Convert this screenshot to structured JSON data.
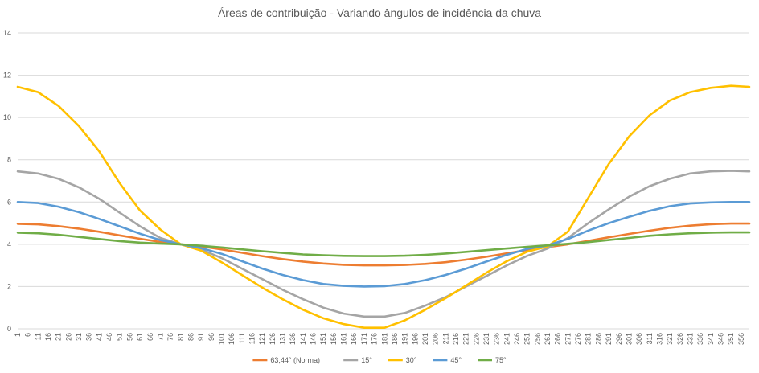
{
  "chart_data": {
    "type": "line",
    "title": "Áreas de contribuição - Variando ângulos de incidência da chuva",
    "xlabel": "",
    "ylabel": "",
    "ylim": [
      0,
      14
    ],
    "yticks": [
      0,
      2,
      4,
      6,
      8,
      10,
      12,
      14
    ],
    "xlim": [
      1,
      360
    ],
    "xtick_start": 1,
    "xtick_step": 5,
    "grid": true,
    "legend_position": "bottom",
    "x": [
      1,
      11,
      21,
      31,
      41,
      51,
      61,
      71,
      81,
      91,
      101,
      111,
      121,
      131,
      141,
      151,
      161,
      171,
      181,
      191,
      201,
      211,
      221,
      231,
      241,
      251,
      261,
      271,
      281,
      291,
      301,
      311,
      321,
      331,
      341,
      351,
      360
    ],
    "series": [
      {
        "name": "63,44° (Norma)",
        "color": "#ED7D31",
        "values": [
          4.97,
          4.94,
          4.86,
          4.74,
          4.59,
          4.42,
          4.26,
          4.11,
          4.0,
          3.9,
          3.76,
          3.6,
          3.44,
          3.3,
          3.18,
          3.09,
          3.03,
          3.0,
          3.0,
          3.02,
          3.07,
          3.15,
          3.27,
          3.41,
          3.57,
          3.73,
          3.87,
          4.0,
          4.16,
          4.33,
          4.49,
          4.64,
          4.78,
          4.88,
          4.95,
          4.98,
          4.98
        ]
      },
      {
        "name": "15°",
        "color": "#A5A5A5",
        "values": [
          7.45,
          7.35,
          7.1,
          6.7,
          6.15,
          5.5,
          4.85,
          4.3,
          4.0,
          3.75,
          3.35,
          2.85,
          2.35,
          1.85,
          1.4,
          1.0,
          0.72,
          0.58,
          0.58,
          0.75,
          1.1,
          1.5,
          2.0,
          2.5,
          3.0,
          3.45,
          3.8,
          4.3,
          5.0,
          5.65,
          6.25,
          6.75,
          7.1,
          7.35,
          7.45,
          7.48,
          7.45
        ]
      },
      {
        "name": "30°",
        "color": "#FFC000",
        "values": [
          11.45,
          11.2,
          10.55,
          9.6,
          8.4,
          6.9,
          5.6,
          4.7,
          4.0,
          3.7,
          3.15,
          2.55,
          1.95,
          1.4,
          0.9,
          0.5,
          0.22,
          0.05,
          0.05,
          0.4,
          0.9,
          1.45,
          2.05,
          2.65,
          3.2,
          3.65,
          3.9,
          4.6,
          6.2,
          7.8,
          9.1,
          10.1,
          10.8,
          11.2,
          11.4,
          11.5,
          11.45
        ]
      },
      {
        "name": "45°",
        "color": "#5B9BD5",
        "values": [
          6.0,
          5.95,
          5.78,
          5.52,
          5.2,
          4.85,
          4.5,
          4.2,
          4.0,
          3.82,
          3.55,
          3.2,
          2.85,
          2.55,
          2.3,
          2.12,
          2.03,
          2.0,
          2.02,
          2.12,
          2.3,
          2.55,
          2.85,
          3.18,
          3.5,
          3.78,
          3.95,
          4.25,
          4.65,
          5.0,
          5.3,
          5.58,
          5.8,
          5.93,
          5.98,
          6.0,
          6.0
        ]
      },
      {
        "name": "75°",
        "color": "#70AD47",
        "values": [
          4.55,
          4.52,
          4.45,
          4.35,
          4.25,
          4.15,
          4.08,
          4.03,
          4.0,
          3.93,
          3.85,
          3.76,
          3.67,
          3.59,
          3.52,
          3.48,
          3.45,
          3.44,
          3.44,
          3.46,
          3.5,
          3.56,
          3.64,
          3.72,
          3.8,
          3.88,
          3.95,
          4.02,
          4.1,
          4.2,
          4.3,
          4.4,
          4.47,
          4.52,
          4.55,
          4.56,
          4.56
        ]
      }
    ]
  }
}
